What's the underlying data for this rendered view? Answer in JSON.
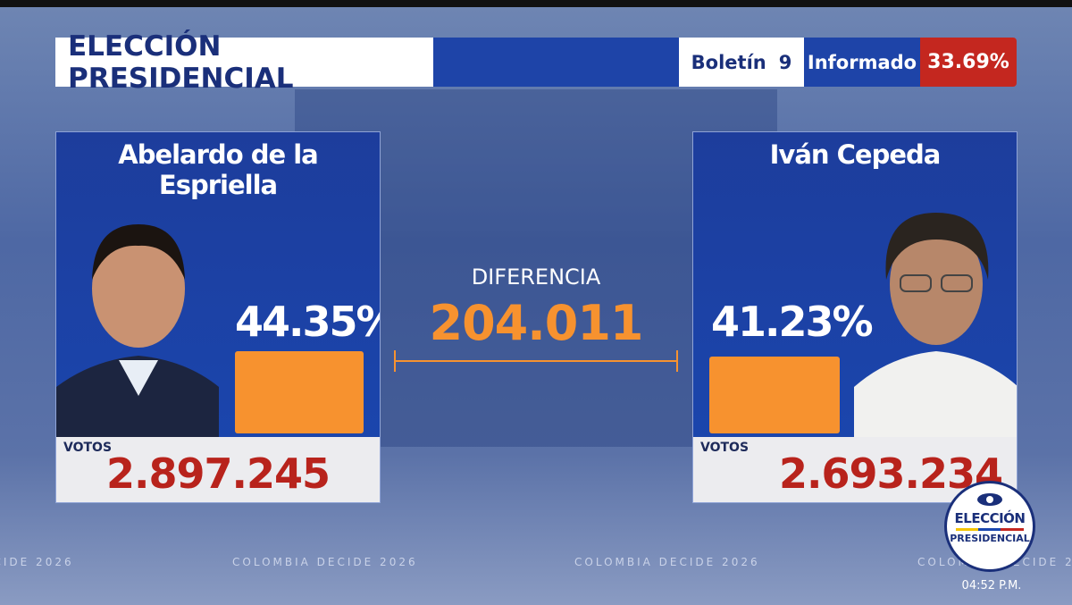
{
  "header": {
    "title": "ELECCIÓN PRESIDENCIAL",
    "bulletin_label": "Boletín",
    "bulletin_number": "9",
    "reported_label": "Informado",
    "reported_value": "33.69%"
  },
  "candidates": [
    {
      "name": "Abelardo de la Espriella",
      "percent": "44.35%",
      "votes_label": "VOTOS",
      "votes": "2.897.245"
    },
    {
      "name": "Iván Cepeda",
      "percent": "41.23%",
      "votes_label": "VOTOS",
      "votes": "2.693.234"
    }
  ],
  "difference": {
    "label": "DIFERENCIA",
    "value": "204.011"
  },
  "watermark": "COLOMBIA DECIDE 2026",
  "logo": {
    "line1": "ELECCIÓN",
    "line2": "PRESIDENCIAL"
  },
  "time": "04:52 P.M."
}
